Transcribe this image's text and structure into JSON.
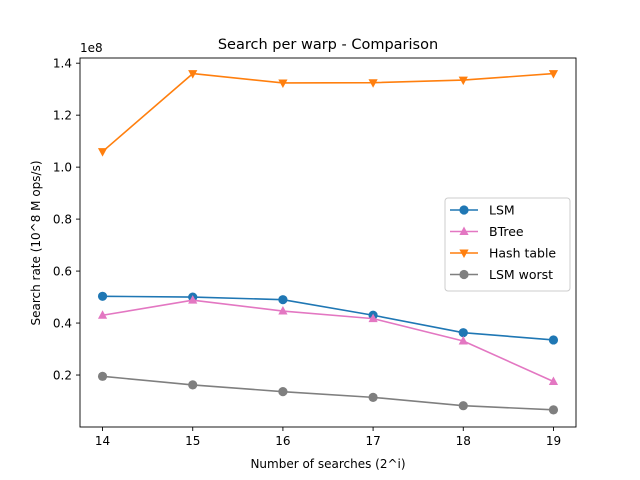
{
  "chart_data": {
    "type": "line",
    "title": "Search per warp - Comparison",
    "xlabel": "Number of searches (2^i)",
    "ylabel": "Search rate (10^8 M ops/s)",
    "offset_label": "1e8",
    "x": [
      14,
      15,
      16,
      17,
      18,
      19
    ],
    "xticks": [
      "14",
      "15",
      "16",
      "17",
      "18",
      "19"
    ],
    "yticks": [
      "0.2",
      "0.4",
      "0.6",
      "0.8",
      "1.0",
      "1.2",
      "1.4"
    ],
    "ytick_values": [
      20000000,
      40000000,
      60000000,
      80000000,
      100000000,
      120000000,
      140000000
    ],
    "xlim": [
      13.75,
      19.25
    ],
    "ylim": [
      0,
      142000000
    ],
    "grid": false,
    "legend_position": "center-right",
    "series": [
      {
        "name": "LSM",
        "color": "#1f77b4",
        "marker": "circle",
        "values": [
          50300000,
          50000000,
          49000000,
          43000000,
          36300000,
          33500000
        ]
      },
      {
        "name": "BTree",
        "color": "#e377c2",
        "marker": "triangle-up",
        "values": [
          43000000,
          48800000,
          44600000,
          41700000,
          33100000,
          17500000
        ]
      },
      {
        "name": "Hash table",
        "color": "#ff7f0e",
        "marker": "triangle-down",
        "values": [
          106000000,
          136000000,
          132400000,
          132500000,
          133500000,
          136000000
        ]
      },
      {
        "name": "LSM worst",
        "color": "#7f7f7f",
        "marker": "circle",
        "values": [
          19500000,
          16200000,
          13600000,
          11400000,
          8200000,
          6600000
        ]
      }
    ]
  }
}
